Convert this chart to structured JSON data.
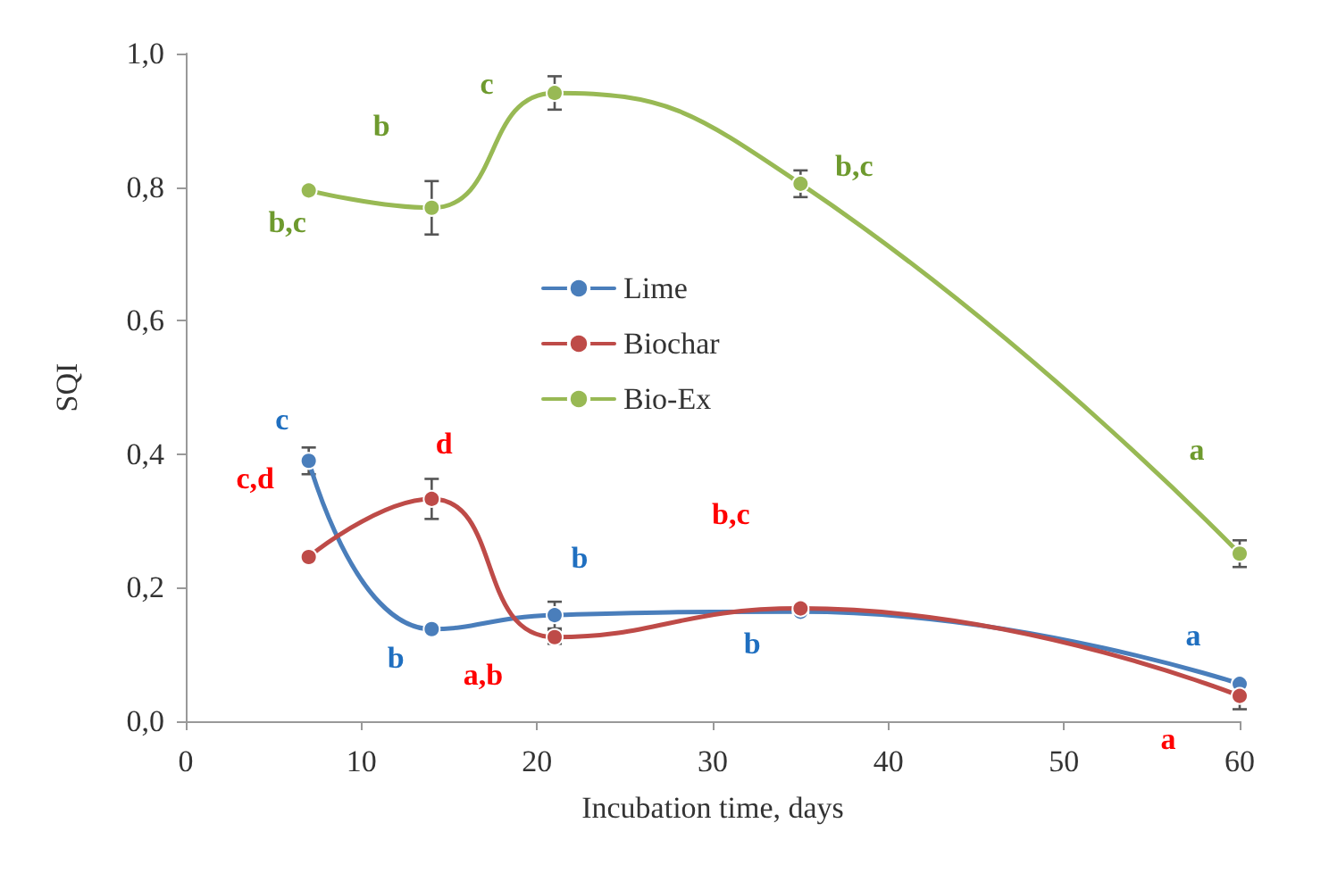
{
  "chart_data": {
    "type": "line",
    "xlabel": "Incubation time, days",
    "ylabel": "SQI",
    "x": [
      7,
      14,
      21,
      35,
      60
    ],
    "series": [
      {
        "name": "Lime",
        "color": "#4a7ebb",
        "values": [
          0.39,
          0.138,
          0.159,
          0.164,
          0.056
        ],
        "errors": [
          0.02,
          null,
          0.02,
          null,
          null
        ],
        "value_labels": [
          "c",
          "b",
          "b",
          "b",
          "a"
        ]
      },
      {
        "name": "Biochar",
        "color": "#be4b48",
        "values": [
          0.246,
          0.333,
          0.126,
          0.169,
          0.038
        ],
        "errors": [
          null,
          0.03,
          0.01,
          null,
          0.02
        ],
        "value_labels": [
          "c,d",
          "d",
          "a,b",
          "b,c",
          "a"
        ]
      },
      {
        "name": "Bio-Ex",
        "color": "#98b954",
        "values": [
          0.795,
          0.769,
          0.941,
          0.805,
          0.251
        ],
        "errors": [
          null,
          0.04,
          0.025,
          0.02,
          0.02
        ],
        "value_labels": [
          "b,c",
          "b",
          "c",
          "b,c",
          "a"
        ]
      }
    ],
    "xlim": [
      0,
      60
    ],
    "xticks": [
      0,
      10,
      20,
      30,
      40,
      50,
      60
    ],
    "ylim": [
      0,
      1
    ],
    "yticks": [
      {
        "value": 0,
        "label": "0,0"
      },
      {
        "value": 0.2,
        "label": "0,2"
      },
      {
        "value": 0.4,
        "label": "0,4"
      },
      {
        "value": 0.6,
        "label": "0,6"
      },
      {
        "value": 0.8,
        "label": "0,8"
      },
      {
        "value": 1,
        "label": "1,0"
      }
    ],
    "grid": false,
    "legend": "center",
    "marker": "circle",
    "line_style": "solid"
  }
}
